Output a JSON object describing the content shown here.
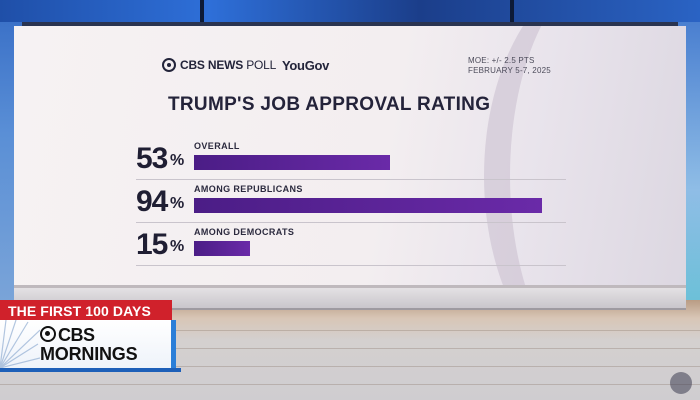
{
  "header": {
    "source_brand": "CBS NEWS",
    "source_suffix": "POLL",
    "partner": "YouGov",
    "moe": "MOE: +/- 2.5 PTS",
    "dates": "FEBRUARY 5-7, 2025"
  },
  "chart_data": {
    "type": "bar",
    "orientation": "horizontal",
    "title": "TRUMP'S JOB APPROVAL RATING",
    "categories": [
      "OVERALL",
      "AMONG REPUBLICANS",
      "AMONG DEMOCRATS"
    ],
    "values": [
      53,
      94,
      15
    ],
    "value_labels": [
      "53",
      "94",
      "15"
    ],
    "unit": "%",
    "xlim": [
      0,
      100
    ],
    "bar_color": "#5b22a0",
    "grid": false
  },
  "lower_third": {
    "segment": "THE FIRST 100 DAYS",
    "brand": "CBS",
    "show": "MORNINGS"
  },
  "colors": {
    "segment_red": "#d0212b",
    "accent_blue": "#2a7ed8",
    "bar_purple": "#5b22a0"
  }
}
